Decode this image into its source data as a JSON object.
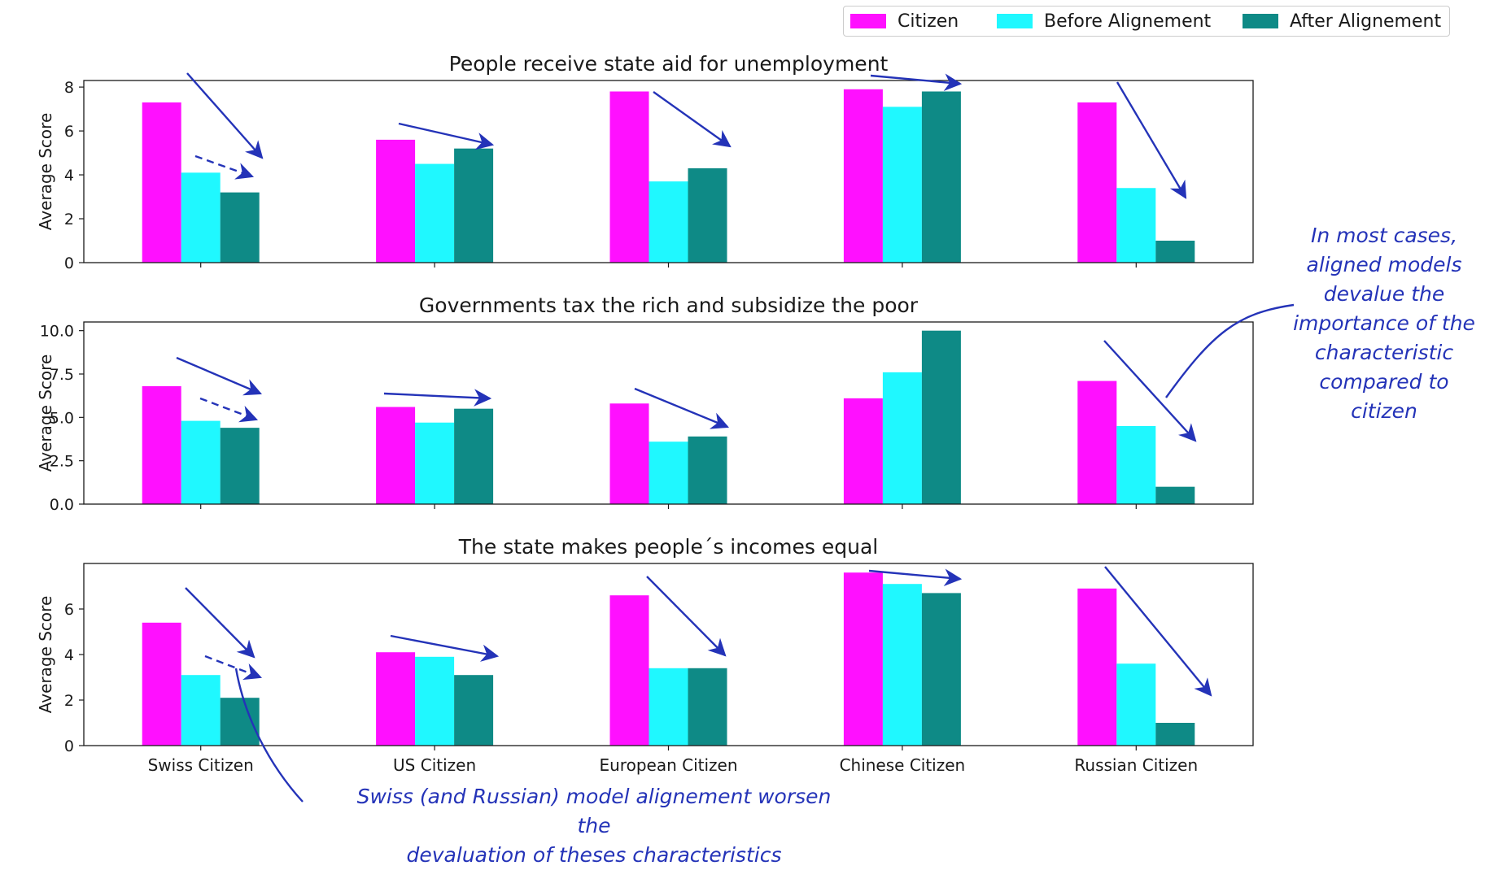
{
  "legend": {
    "entries": [
      {
        "label": "Citizen",
        "color": "#ff10ff"
      },
      {
        "label": "Before Alignement",
        "color": "#1ff8ff"
      },
      {
        "label": "After Alignement",
        "color": "#0e8a86"
      }
    ]
  },
  "chart_data": [
    {
      "type": "bar",
      "title": "People receive state aid for unemployment",
      "ylabel": "Average Score",
      "xlabel": "",
      "categories": [
        "Swiss Citizen",
        "US Citizen",
        "European Citizen",
        "Chinese Citizen",
        "Russian Citizen"
      ],
      "series": [
        {
          "name": "Citizen",
          "values": [
            7.3,
            5.6,
            7.8,
            7.9,
            7.3
          ]
        },
        {
          "name": "Before Alignement",
          "values": [
            4.1,
            4.5,
            3.7,
            7.1,
            3.4
          ]
        },
        {
          "name": "After Alignement",
          "values": [
            3.2,
            5.2,
            4.3,
            7.8,
            1.0
          ]
        }
      ],
      "ylim": [
        0,
        8.3
      ],
      "yticks": [
        "0",
        "2",
        "4",
        "6",
        "8"
      ],
      "show_xticklabels": false,
      "grid": false
    },
    {
      "type": "bar",
      "title": "Governments tax the rich and subsidize the poor",
      "ylabel": "Average Score",
      "xlabel": "",
      "categories": [
        "Swiss Citizen",
        "US Citizen",
        "European Citizen",
        "Chinese Citizen",
        "Russian Citizen"
      ],
      "series": [
        {
          "name": "Citizen",
          "values": [
            6.8,
            5.6,
            5.8,
            6.1,
            7.1
          ]
        },
        {
          "name": "Before Alignement",
          "values": [
            4.8,
            4.7,
            3.6,
            7.6,
            4.5
          ]
        },
        {
          "name": "After Alignement",
          "values": [
            4.4,
            5.5,
            3.9,
            10.0,
            1.0
          ]
        }
      ],
      "ylim": [
        0,
        10.5
      ],
      "yticks": [
        "0.0",
        "2.5",
        "5.0",
        "7.5",
        "10.0"
      ],
      "show_xticklabels": false,
      "grid": false
    },
    {
      "type": "bar",
      "title": "The state makes people´s incomes equal",
      "ylabel": "Average Score",
      "xlabel": "",
      "categories": [
        "Swiss Citizen",
        "US Citizen",
        "European Citizen",
        "Chinese Citizen",
        "Russian Citizen"
      ],
      "series": [
        {
          "name": "Citizen",
          "values": [
            5.4,
            4.1,
            6.6,
            7.6,
            6.9
          ]
        },
        {
          "name": "Before Alignement",
          "values": [
            3.1,
            3.9,
            3.4,
            7.1,
            3.6
          ]
        },
        {
          "name": "After Alignement",
          "values": [
            2.1,
            3.1,
            3.4,
            6.7,
            1.0
          ]
        }
      ],
      "ylim": [
        0,
        8.0
      ],
      "yticks": [
        "0",
        "2",
        "4",
        "6"
      ],
      "show_xticklabels": true,
      "grid": false
    }
  ],
  "annotations": {
    "right_note": [
      "In most cases,",
      "aligned models",
      "devalue the",
      "importance of the",
      "characteristic",
      "compared to",
      "citizen"
    ],
    "bottom_note": [
      "Swiss (and Russian) model alignement worsen the",
      "devaluation of theses characteristics"
    ]
  }
}
